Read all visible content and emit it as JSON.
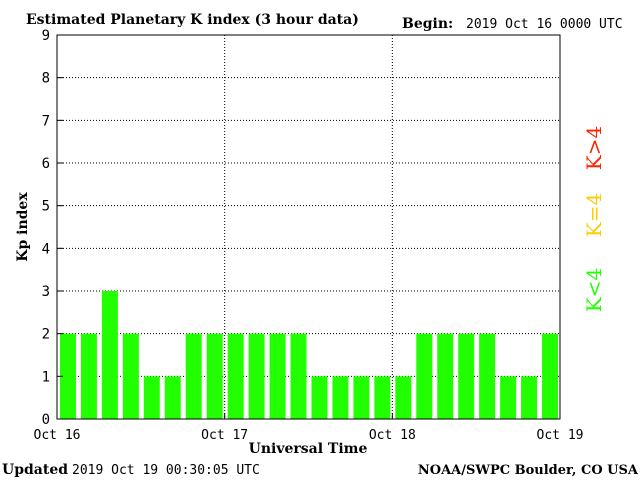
{
  "header": {
    "title": "Estimated Planetary K index (3 hour data)",
    "begin_label": "Begin:",
    "begin_value": "2019 Oct 16 0000 UTC"
  },
  "footer": {
    "updated_label": "Updated",
    "updated_value": "2019 Oct 19 00:30:05 UTC",
    "source": "NOAA/SWPC Boulder, CO USA"
  },
  "legend": [
    {
      "label": "K>4",
      "color": "#ff2200"
    },
    {
      "label": "K=4",
      "color": "#ffcc00"
    },
    {
      "label": "K<4",
      "color": "#22ff00"
    }
  ],
  "colors": {
    "bar_below4": "#22ff00",
    "bar_equal4": "#ffcc00",
    "bar_above4": "#ff2200",
    "grid": "#000000",
    "axis": "#000000"
  },
  "chart_data": {
    "type": "bar",
    "title": "Estimated Planetary K index (3 hour data)",
    "xlabel": "Universal Time",
    "ylabel": "Kp index",
    "ylim": [
      0,
      9
    ],
    "yticks": [
      0,
      1,
      2,
      3,
      4,
      5,
      6,
      7,
      8,
      9
    ],
    "xticks": [
      "Oct 16",
      "Oct 17",
      "Oct 18",
      "Oct 19"
    ],
    "interval_hours": 3,
    "values": [
      2,
      2,
      3,
      2,
      1,
      1,
      2,
      2,
      2,
      2,
      2,
      2,
      1,
      1,
      1,
      1,
      1,
      2,
      2,
      2,
      2,
      1,
      1,
      2
    ],
    "grid": true
  }
}
